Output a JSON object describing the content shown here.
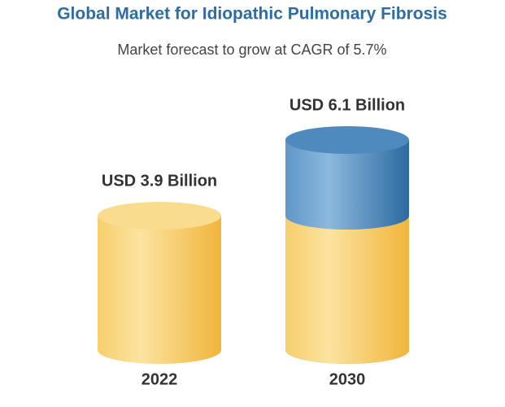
{
  "chart_data": {
    "type": "cylinder",
    "title": "Global Market for Idiopathic Pulmonary Fibrosis",
    "subtitle": "Market forecast to grow at CAGR of 5.7%",
    "categories": [
      "2022",
      "2030"
    ],
    "values": [
      3.9,
      6.1
    ],
    "value_labels": [
      "USD 3.9 Billion",
      "USD 6.1 Billion"
    ],
    "colors": {
      "base": "#f4c04f",
      "growth": "#3d7db4"
    }
  }
}
